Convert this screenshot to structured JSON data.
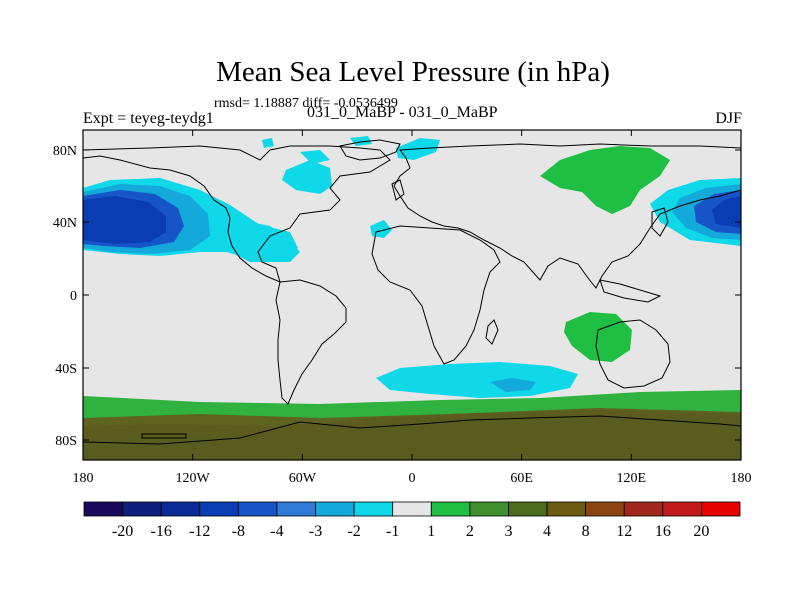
{
  "title": "Mean Sea Level Pressure (in hPa)",
  "stats": "rmsd= 1.18887 diff= -0.0536499",
  "left_label": "Expt = teyeg-teydg1",
  "center_label": "031_0_MaBP - 031_0_MaBP",
  "right_label": "DJF",
  "map": {
    "lat_labels": [
      "80N",
      "40N",
      "0",
      "40S",
      "80S"
    ],
    "lon_labels": [
      "180",
      "120W",
      "60W",
      "0",
      "60E",
      "120E",
      "180"
    ]
  },
  "colorbar": {
    "labels": [
      "-20",
      "-16",
      "-12",
      "-8",
      "-4",
      "-3",
      "-2",
      "-1",
      "1",
      "2",
      "3",
      "4",
      "8",
      "12",
      "16",
      "20"
    ],
    "colors": [
      "#1a0a5e",
      "#0d1f7a",
      "#0a2a96",
      "#0a3cb4",
      "#1555c8",
      "#2e7ad6",
      "#13a9da",
      "#0fd8e8",
      "#e6e6e6",
      "#1fbf44",
      "#3f8f2f",
      "#4d6b1e",
      "#6b5a10",
      "#8b4513",
      "#a0281a",
      "#c21a1a",
      "#e60000"
    ]
  }
}
